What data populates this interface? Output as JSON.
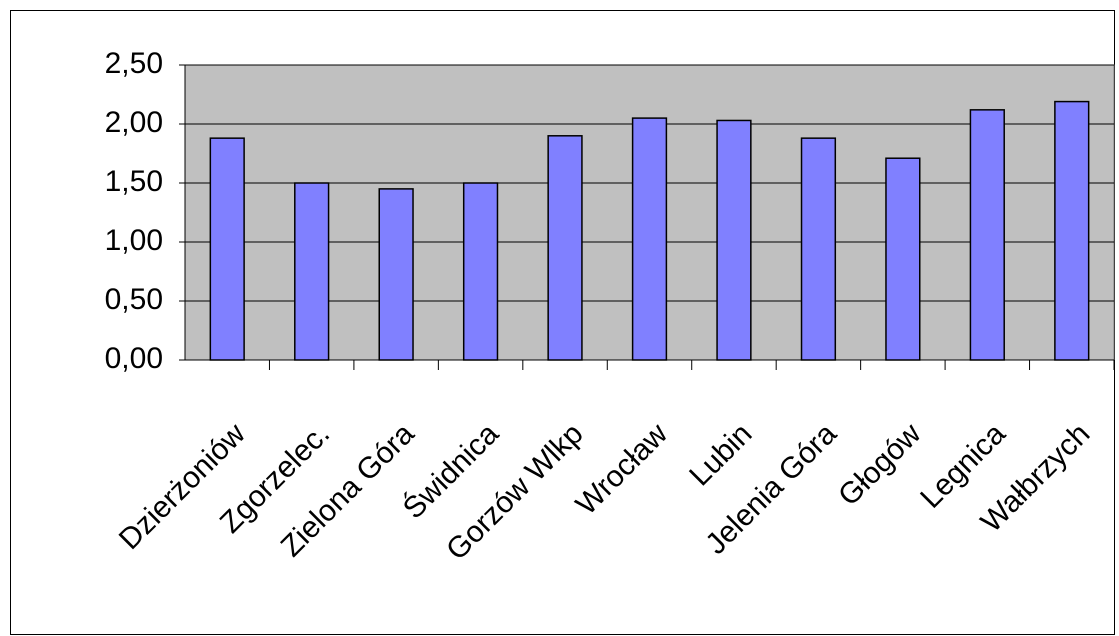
{
  "chart_data": {
    "type": "bar",
    "categories": [
      "Dzierżoniów",
      "Zgorzelec.",
      "Zielona Góra",
      "Świdnica",
      "Gorzów Wlkp",
      "Wrocław",
      "Lubin",
      "Jelenia Góra",
      "Głogów",
      "Legnica",
      "Wałbrzych"
    ],
    "values": [
      1.88,
      1.5,
      1.45,
      1.5,
      1.9,
      2.05,
      2.03,
      1.88,
      1.71,
      2.12,
      2.19
    ],
    "color": "#8080ff",
    "plot_background": "#c0c0c0",
    "ylim": [
      0,
      2.5
    ],
    "yticks": [
      {
        "value": 0,
        "label": "0,00"
      },
      {
        "value": 0.5,
        "label": "0,50"
      },
      {
        "value": 1,
        "label": "1,00"
      },
      {
        "value": 1.5,
        "label": "1,50"
      },
      {
        "value": 2,
        "label": "2,00"
      },
      {
        "value": 2.5,
        "label": "2,50"
      }
    ],
    "grid": true
  }
}
